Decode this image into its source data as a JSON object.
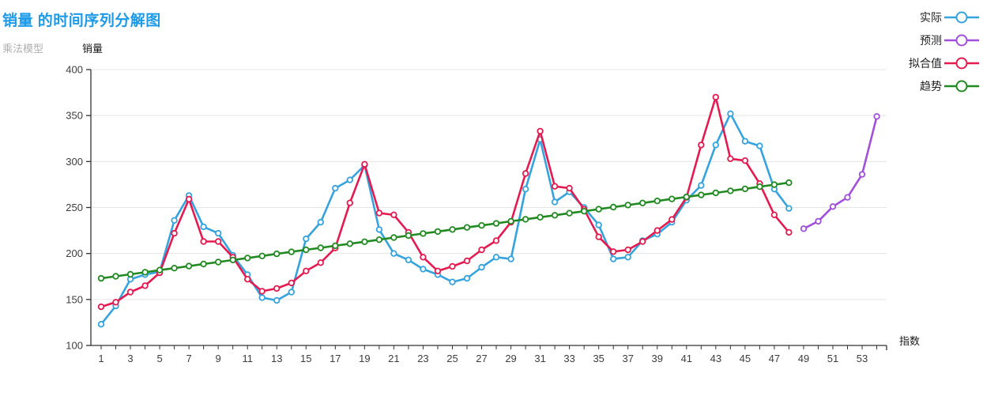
{
  "header": {
    "title": "销量 的时间序列分解图",
    "subtitle": "乘法模型"
  },
  "axes": {
    "y_title": "销量",
    "x_title": "指数",
    "y_ticks": [
      400,
      350,
      300,
      250,
      200,
      150,
      100
    ],
    "x_tick_labels": [
      1,
      3,
      5,
      7,
      9,
      11,
      13,
      15,
      17,
      19,
      21,
      23,
      25,
      27,
      29,
      31,
      33,
      35,
      37,
      39,
      41,
      43,
      45,
      47,
      49,
      51,
      53
    ],
    "x_minor_tick_every": 1,
    "y_range": [
      100,
      400
    ],
    "x_range": [
      1,
      54
    ]
  },
  "legend": [
    {
      "label": "实际",
      "series": "actual",
      "color": "#35a3dd"
    },
    {
      "label": "预测",
      "series": "forecast",
      "color": "#a24fdb"
    },
    {
      "label": "拟合值",
      "series": "fitted",
      "color": "#e31b50"
    },
    {
      "label": "趋势",
      "series": "trend",
      "color": "#218a21"
    }
  ],
  "colors": {
    "title": "#1d9be8",
    "subtitle": "#b0b0b0",
    "axis": "#333333",
    "gridline": "#e4e4e4"
  },
  "chart_data": {
    "type": "line",
    "title": "销量 的时间序列分解图",
    "subtitle": "乘法模型",
    "xlabel": "指数",
    "ylabel": "销量",
    "ylim": [
      100,
      400
    ],
    "xlim": [
      1,
      54
    ],
    "grid": "horizontal-only",
    "legend_position": "top-right",
    "marker": "open-circle",
    "series": [
      {
        "name": "实际",
        "color": "#35a3dd",
        "x": [
          1,
          2,
          3,
          4,
          5,
          6,
          7,
          8,
          9,
          10,
          11,
          12,
          13,
          14,
          15,
          16,
          17,
          18,
          19,
          20,
          21,
          22,
          23,
          24,
          25,
          26,
          27,
          28,
          29,
          30,
          31,
          32,
          33,
          34,
          35,
          36,
          37,
          38,
          39,
          40,
          41,
          42,
          43,
          44,
          45,
          46,
          47,
          48
        ],
        "values": [
          123,
          143,
          172,
          177,
          180,
          236,
          263,
          229,
          222,
          198,
          177,
          152,
          149,
          158,
          216,
          234,
          271,
          280,
          296,
          226,
          200,
          193,
          183,
          177,
          169,
          173,
          185,
          196,
          194,
          270,
          324,
          256,
          267,
          250,
          231,
          194,
          196,
          214,
          221,
          234,
          258,
          274,
          318,
          352,
          322,
          317,
          270,
          249
        ]
      },
      {
        "name": "预测",
        "color": "#a24fdb",
        "x": [
          49,
          50,
          51,
          52,
          53,
          54
        ],
        "values": [
          227,
          235,
          251,
          261,
          286,
          349
        ]
      },
      {
        "name": "拟合值",
        "color": "#e31b50",
        "x": [
          1,
          2,
          3,
          4,
          5,
          6,
          7,
          8,
          9,
          10,
          11,
          12,
          13,
          14,
          15,
          16,
          17,
          18,
          19,
          20,
          21,
          22,
          23,
          24,
          25,
          26,
          27,
          28,
          29,
          30,
          31,
          32,
          33,
          34,
          35,
          36,
          37,
          38,
          39,
          40,
          41,
          42,
          43,
          44,
          45,
          46,
          47,
          48
        ],
        "values": [
          142,
          147,
          158,
          165,
          179,
          222,
          259,
          213,
          213,
          196,
          172,
          159,
          162,
          168,
          181,
          190,
          206,
          255,
          297,
          244,
          242,
          223,
          196,
          181,
          186,
          192,
          204,
          214,
          234,
          287,
          333,
          273,
          271,
          248,
          218,
          202,
          204,
          213,
          225,
          237,
          261,
          318,
          370,
          303,
          301,
          276,
          242,
          223
        ]
      },
      {
        "name": "趋势",
        "color": "#218a21",
        "x": [
          1,
          2,
          3,
          4,
          5,
          6,
          7,
          8,
          9,
          10,
          11,
          12,
          13,
          14,
          15,
          16,
          17,
          18,
          19,
          20,
          21,
          22,
          23,
          24,
          25,
          26,
          27,
          28,
          29,
          30,
          31,
          32,
          33,
          34,
          35,
          36,
          37,
          38,
          39,
          40,
          41,
          42,
          43,
          44,
          45,
          46,
          47,
          48
        ],
        "values": [
          173.0,
          175.2,
          177.4,
          179.6,
          181.9,
          184.1,
          186.3,
          188.5,
          190.7,
          192.9,
          195.1,
          197.3,
          199.6,
          201.8,
          204.0,
          206.2,
          208.4,
          210.6,
          212.8,
          215.0,
          217.3,
          219.5,
          221.7,
          223.9,
          226.1,
          228.3,
          230.5,
          232.7,
          235.0,
          237.2,
          239.4,
          241.6,
          243.8,
          246.0,
          248.2,
          250.4,
          252.7,
          254.9,
          257.1,
          259.3,
          261.5,
          263.7,
          265.9,
          268.1,
          270.3,
          272.6,
          274.8,
          277.0
        ]
      }
    ]
  }
}
